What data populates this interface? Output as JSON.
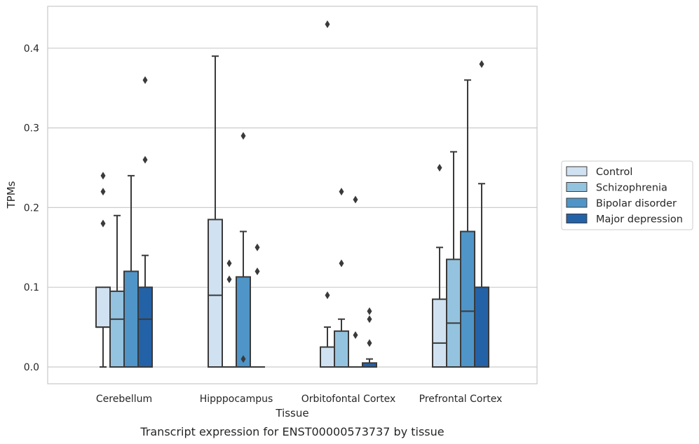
{
  "caption": "Transcript expression for ENST00000573737 by tissue",
  "colors": {
    "Control": "#d0e1f1",
    "Schizophrenia": "#94c3df",
    "Bipolar disorder": "#4f95c8",
    "Major depression": "#2462a7",
    "edge": "#3a3a3a",
    "grid": "#cccccc",
    "frame": "#c8c8c8"
  },
  "chart_data": {
    "type": "box",
    "xlabel": "Tissue",
    "ylabel": "TPMs",
    "ylim": [
      -0.021,
      0.452
    ],
    "yticks": [
      0.0,
      0.1,
      0.2,
      0.3,
      0.4
    ],
    "ytick_labels": [
      "0.0",
      "0.1",
      "0.2",
      "0.3",
      "0.4"
    ],
    "grid": true,
    "legend_position": "right",
    "categories": [
      "Cerebellum",
      "Hipppocampus",
      "Orbitofontal Cortex",
      "Prefrontal Cortex"
    ],
    "series": [
      {
        "name": "Control",
        "boxes": [
          {
            "q1": 0.05,
            "median": 0.05,
            "q3": 0.1,
            "whislo": 0.0,
            "whishi": 0.1,
            "fliers": [
              0.18,
              0.22,
              0.24
            ]
          },
          {
            "q1": 0.0,
            "median": 0.09,
            "q3": 0.185,
            "whislo": 0.0,
            "whishi": 0.39,
            "fliers": []
          },
          {
            "q1": 0.0,
            "median": 0.0,
            "q3": 0.025,
            "whislo": 0.0,
            "whishi": 0.05,
            "fliers": [
              0.09,
              0.43
            ]
          },
          {
            "q1": 0.0,
            "median": 0.03,
            "q3": 0.085,
            "whislo": 0.0,
            "whishi": 0.15,
            "fliers": [
              0.25
            ]
          }
        ]
      },
      {
        "name": "Schizophrenia",
        "boxes": [
          {
            "q1": 0.0,
            "median": 0.06,
            "q3": 0.095,
            "whislo": 0.0,
            "whishi": 0.19,
            "fliers": []
          },
          {
            "q1": 0.0,
            "median": 0.0,
            "q3": 0.0,
            "whislo": 0.0,
            "whishi": 0.0,
            "fliers": [
              0.11,
              0.13
            ]
          },
          {
            "q1": 0.0,
            "median": 0.0,
            "q3": 0.045,
            "whislo": 0.0,
            "whishi": 0.06,
            "fliers": [
              0.13,
              0.22
            ]
          },
          {
            "q1": 0.0,
            "median": 0.055,
            "q3": 0.135,
            "whislo": 0.0,
            "whishi": 0.27,
            "fliers": []
          }
        ]
      },
      {
        "name": "Bipolar disorder",
        "boxes": [
          {
            "q1": 0.0,
            "median": 0.0,
            "q3": 0.12,
            "whislo": 0.0,
            "whishi": 0.24,
            "fliers": []
          },
          {
            "q1": 0.0,
            "median": 0.0,
            "q3": 0.113,
            "whislo": 0.0,
            "whishi": 0.17,
            "fliers": [
              0.01,
              0.29
            ]
          },
          {
            "q1": 0.0,
            "median": 0.0,
            "q3": 0.0,
            "whislo": 0.0,
            "whishi": 0.0,
            "fliers": [
              0.04,
              0.21
            ]
          },
          {
            "q1": 0.0,
            "median": 0.07,
            "q3": 0.17,
            "whislo": 0.0,
            "whishi": 0.36,
            "fliers": []
          }
        ]
      },
      {
        "name": "Major depression",
        "boxes": [
          {
            "q1": 0.0,
            "median": 0.06,
            "q3": 0.1,
            "whislo": 0.0,
            "whishi": 0.14,
            "fliers": [
              0.26,
              0.36
            ]
          },
          {
            "q1": 0.0,
            "median": 0.0,
            "q3": 0.0,
            "whislo": 0.0,
            "whishi": 0.0,
            "fliers": [
              0.12,
              0.15
            ]
          },
          {
            "q1": 0.0,
            "median": 0.0,
            "q3": 0.005,
            "whislo": 0.0,
            "whishi": 0.01,
            "fliers": [
              0.03,
              0.06,
              0.07
            ]
          },
          {
            "q1": 0.0,
            "median": 0.0,
            "q3": 0.1,
            "whislo": 0.0,
            "whishi": 0.23,
            "fliers": [
              0.38
            ]
          }
        ]
      }
    ]
  }
}
